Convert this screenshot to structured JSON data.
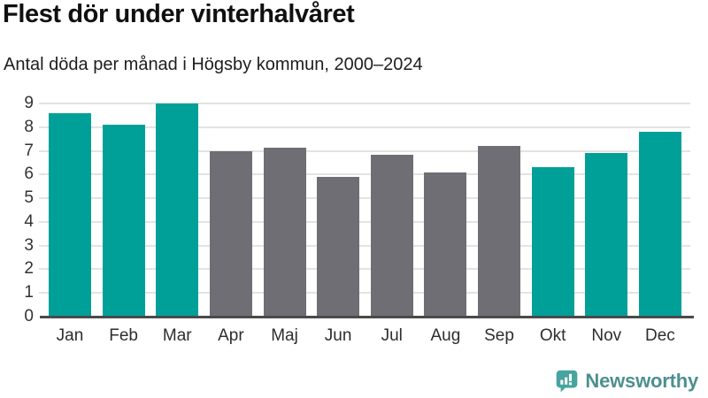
{
  "title": "Flest dör under vinterhalvåret",
  "subtitle": "Antal döda per månad i Högsby kommun, 2000–2024",
  "branding": {
    "logo_text": "Newsworthy",
    "logo_icon": "bar-chart-speech-bubble-icon"
  },
  "colors": {
    "winter": "#00a099",
    "summer": "#6e6e74",
    "gridline": "#e3e3e3",
    "axis_line": "#4a4a4b",
    "logo_icon_teal": "#47a49e",
    "logo_text_color": "#4d8f90"
  },
  "chart_data": {
    "type": "bar",
    "title": "Flest dör under vinterhalvåret",
    "subtitle": "Antal döda per månad i Högsby kommun, 2000–2024",
    "categories": [
      "Jan",
      "Feb",
      "Mar",
      "Apr",
      "Maj",
      "Jun",
      "Jul",
      "Aug",
      "Sep",
      "Okt",
      "Nov",
      "Dec"
    ],
    "values": [
      8.6,
      8.1,
      9.0,
      7.0,
      7.15,
      5.9,
      6.85,
      6.1,
      7.2,
      6.3,
      6.9,
      7.8
    ],
    "bar_colors": [
      "winter",
      "winter",
      "winter",
      "summer",
      "summer",
      "summer",
      "summer",
      "summer",
      "summer",
      "winter",
      "winter",
      "winter"
    ],
    "xlabel": "",
    "ylabel": "",
    "ylim": [
      0,
      9
    ],
    "yticks": [
      0,
      1,
      2,
      3,
      4,
      5,
      6,
      7,
      8,
      9
    ],
    "grid": true,
    "legend_position": "none"
  }
}
